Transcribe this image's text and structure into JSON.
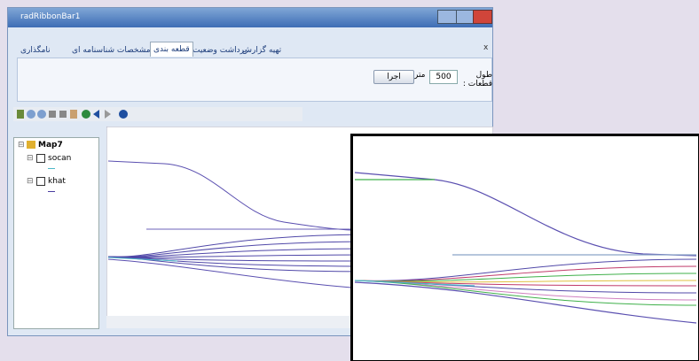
{
  "window": {
    "title": "radRibbonBar1",
    "close": "x"
  },
  "tabs": [
    "تهیه گزارش",
    "برداشت وضعیت",
    "قطعه بندی",
    "مشخصات شناسنامه ای",
    "نامگذاری"
  ],
  "form": {
    "label": "طول قطعات :",
    "value": "500",
    "unit": "متر",
    "button": "اجرا"
  },
  "tree": {
    "root": "Map7",
    "layers": [
      "socan",
      "khat"
    ]
  }
}
